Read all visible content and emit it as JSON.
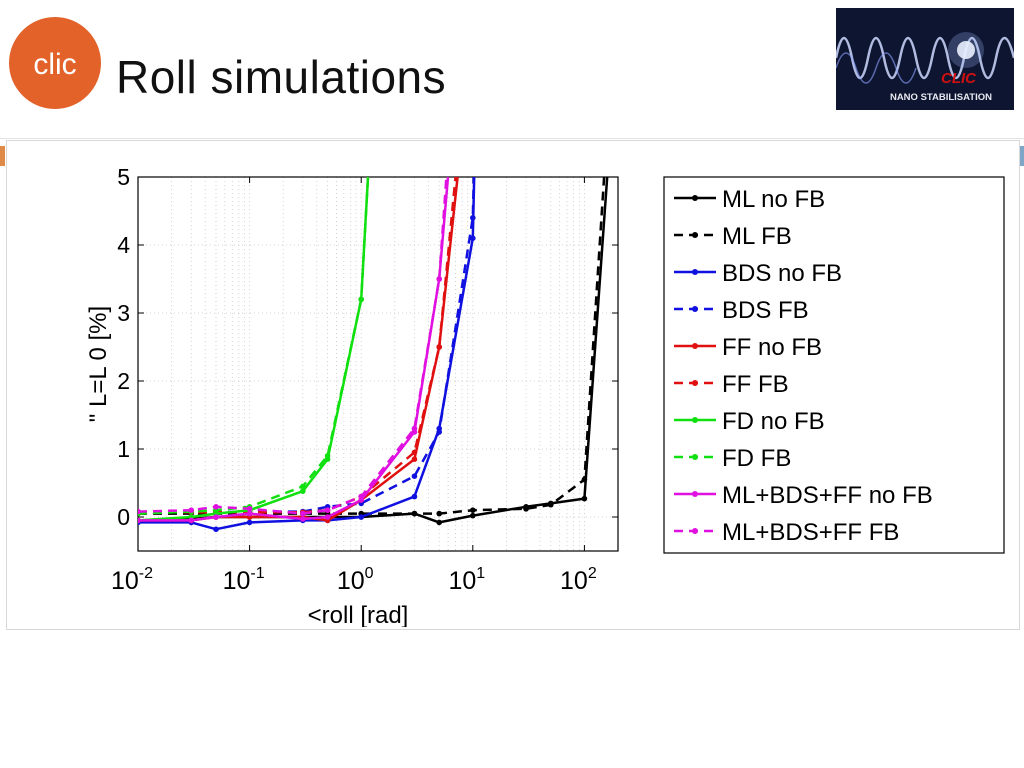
{
  "slide": {
    "title": "Roll simulations"
  },
  "logos": {
    "left": {
      "text": "clic",
      "color": "#e2622a"
    },
    "right": {
      "brand": "CLIC",
      "tagline": "NANO STABILISATION"
    }
  },
  "chart_data": {
    "type": "line",
    "xscale": "log",
    "xlabel": "<roll [rad]",
    "ylabel": "\" L=L 0 [%]",
    "xlim": [
      0.01,
      200
    ],
    "ylim": [
      -0.5,
      5
    ],
    "xticks": [
      0.01,
      0.1,
      1,
      10,
      100
    ],
    "xtick_base": [
      "10",
      "10",
      "10",
      "10",
      "10"
    ],
    "xtick_exp": [
      "-2",
      "-1",
      "0",
      "1",
      "2"
    ],
    "yticks": [
      0,
      1,
      2,
      3,
      4,
      5
    ],
    "ytick_labels": [
      "0",
      "1",
      "2",
      "3",
      "4",
      "5"
    ],
    "grid": true,
    "legend_position": "outside-right",
    "series": [
      {
        "name": "ML no FB",
        "color": "#000000",
        "style": "solid",
        "x": [
          0.01,
          0.03,
          0.05,
          0.1,
          0.3,
          0.5,
          1,
          3,
          5,
          10,
          30,
          50,
          100,
          160
        ],
        "y": [
          -0.05,
          -0.03,
          0.0,
          0.0,
          0.0,
          0.0,
          0.0,
          0.05,
          -0.08,
          0.02,
          0.15,
          0.2,
          0.27,
          5.0
        ]
      },
      {
        "name": "ML FB",
        "color": "#000000",
        "style": "dashed",
        "x": [
          0.01,
          0.03,
          0.05,
          0.1,
          0.3,
          0.5,
          1,
          3,
          5,
          10,
          30,
          50,
          100,
          150
        ],
        "y": [
          0.05,
          0.05,
          0.05,
          0.05,
          0.05,
          0.05,
          0.05,
          0.05,
          0.05,
          0.1,
          0.12,
          0.18,
          0.55,
          5.0
        ]
      },
      {
        "name": "BDS no FB",
        "color": "#1010e0",
        "style": "solid",
        "x": [
          0.01,
          0.03,
          0.05,
          0.1,
          0.3,
          0.5,
          1,
          3,
          5,
          10,
          10.3
        ],
        "y": [
          -0.08,
          -0.08,
          -0.18,
          -0.08,
          -0.05,
          -0.05,
          0.0,
          0.3,
          1.3,
          4.1,
          5.0
        ]
      },
      {
        "name": "BDS FB",
        "color": "#1010e0",
        "style": "dashed",
        "x": [
          0.01,
          0.03,
          0.05,
          0.1,
          0.3,
          0.5,
          1,
          3,
          5,
          10,
          10.2
        ],
        "y": [
          0.07,
          0.07,
          0.07,
          0.08,
          0.08,
          0.15,
          0.2,
          0.6,
          1.25,
          4.4,
          5.0
        ]
      },
      {
        "name": "FF no FB",
        "color": "#e01010",
        "style": "solid",
        "x": [
          0.01,
          0.03,
          0.05,
          0.1,
          0.3,
          0.5,
          1,
          3,
          5,
          7.3
        ],
        "y": [
          -0.05,
          -0.05,
          0.0,
          0.0,
          0.0,
          -0.05,
          0.25,
          0.85,
          2.5,
          5.0
        ]
      },
      {
        "name": "FF FB",
        "color": "#e01010",
        "style": "dashed",
        "x": [
          0.01,
          0.03,
          0.05,
          0.1,
          0.3,
          0.5,
          1,
          3,
          5,
          7
        ],
        "y": [
          0.07,
          0.07,
          0.07,
          0.07,
          0.07,
          0.1,
          0.3,
          0.95,
          2.5,
          5.0
        ]
      },
      {
        "name": "FD no FB",
        "color": "#10e010",
        "style": "solid",
        "x": [
          0.01,
          0.03,
          0.05,
          0.1,
          0.3,
          0.5,
          1,
          1.15
        ],
        "y": [
          -0.05,
          0.0,
          0.05,
          0.1,
          0.38,
          0.85,
          3.2,
          5.0
        ]
      },
      {
        "name": "FD FB",
        "color": "#10e010",
        "style": "dashed",
        "x": [
          0.01,
          0.03,
          0.05,
          0.1,
          0.3,
          0.5,
          1,
          1.15
        ],
        "y": [
          0.05,
          0.08,
          0.1,
          0.15,
          0.45,
          0.9,
          3.2,
          5.0
        ]
      },
      {
        "name": "ML+BDS+FF no FB",
        "color": "#e010e0",
        "style": "solid",
        "x": [
          0.01,
          0.03,
          0.05,
          0.1,
          0.3,
          0.5,
          1,
          3,
          5,
          6
        ],
        "y": [
          -0.05,
          -0.05,
          0.0,
          0.05,
          -0.03,
          0.0,
          0.25,
          1.25,
          3.5,
          5.0
        ]
      },
      {
        "name": "ML+BDS+FF FB",
        "color": "#e010e0",
        "style": "dashed",
        "x": [
          0.01,
          0.03,
          0.05,
          0.1,
          0.3,
          0.5,
          1,
          3,
          5,
          5.8
        ],
        "y": [
          0.08,
          0.1,
          0.15,
          0.12,
          0.05,
          0.1,
          0.3,
          1.3,
          3.5,
          5.0
        ]
      }
    ]
  }
}
